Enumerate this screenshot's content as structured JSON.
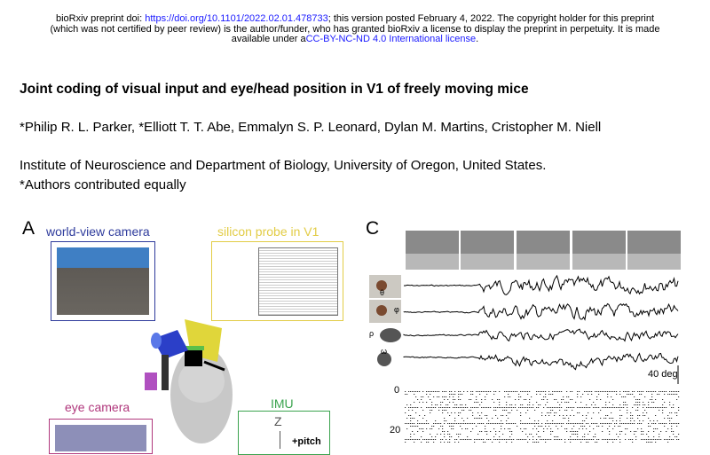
{
  "header": {
    "prefix": "bioRxiv preprint doi: ",
    "doi_link": "https://doi.org/10.1101/2022.02.01.478733",
    "line1_rest": "; this version posted February 4, 2022. The copyright holder for this preprint",
    "line2": "(which was not certified by peer review) is the author/funder, who has granted bioRxiv a license to display the preprint in perpetuity. It is made",
    "line3_prefix": "available under a",
    "license_link": "CC-BY-NC-ND 4.0 International license",
    "line3_suffix": "."
  },
  "paper": {
    "title": "Joint coding of visual input and eye/head position in V1 of freely moving mice",
    "authors": "*Philip R. L. Parker, *Elliott T. T. Abe, Emmalyn S. P. Leonard, Dylan M. Martins, Cristopher M. Niell",
    "affiliation": "Institute of Neuroscience and Department of Biology, University of Oregon, United States.",
    "note": "*Authors contributed equally"
  },
  "figure": {
    "panel_a": {
      "letter": "A",
      "world_camera_label": "world-view camera",
      "probe_label": "silicon probe in V1",
      "eye_camera_label": "eye camera",
      "imu_label": "IMU",
      "imu_axis": "Z",
      "imu_pitch": "+pitch",
      "colors": {
        "world": "#2e3b9c",
        "probe": "#e2cc45",
        "eye": "#b0377c",
        "imu": "#3aa34e"
      }
    },
    "panel_c": {
      "letter": "C",
      "theta_symbol": "θ",
      "phi_symbol": "φ",
      "rho_symbol": "ρ",
      "omega_symbol": "ω",
      "scale_label": "40 deg",
      "raster_ticks": [
        "0",
        "20"
      ]
    }
  }
}
